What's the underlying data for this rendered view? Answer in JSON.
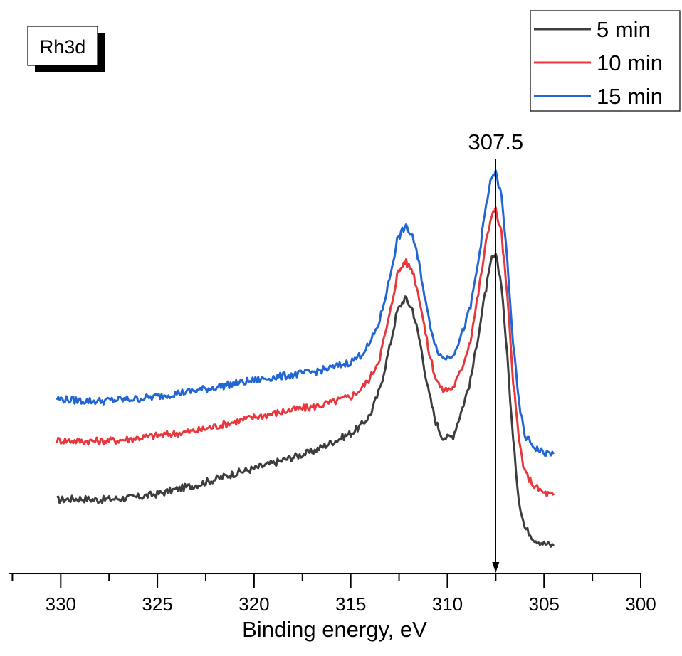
{
  "chart_data": {
    "type": "line",
    "xlabel": "Binding energy, eV",
    "ylabel": "",
    "xlim": [
      332.7,
      300
    ],
    "x_reversed": true,
    "y_ticks_shown": false,
    "grid": false,
    "legend_position": "top-right",
    "x_ticks": [
      330,
      325,
      320,
      315,
      310,
      305,
      300
    ],
    "x_tick_labels": [
      "330",
      "325",
      "320",
      "315",
      "310",
      "305",
      "300"
    ],
    "badge": "Rh3d",
    "annotation": {
      "label": "307.5",
      "x": 307.5
    },
    "series": [
      {
        "name": "5 min",
        "color": "#3d3d3d",
        "points": [
          [
            330.2,
            0.16
          ],
          [
            329,
            0.163
          ],
          [
            328,
            0.16
          ],
          [
            327,
            0.163
          ],
          [
            326,
            0.166
          ],
          [
            325,
            0.173
          ],
          [
            324,
            0.183
          ],
          [
            323,
            0.193
          ],
          [
            322,
            0.205
          ],
          [
            321,
            0.218
          ],
          [
            320,
            0.228
          ],
          [
            319,
            0.24
          ],
          [
            318,
            0.253
          ],
          [
            317,
            0.265
          ],
          [
            316,
            0.285
          ],
          [
            315,
            0.305
          ],
          [
            314.5,
            0.32
          ],
          [
            314,
            0.345
          ],
          [
            313.5,
            0.4
          ],
          [
            313,
            0.49
          ],
          [
            312.6,
            0.57
          ],
          [
            312.2,
            0.6
          ],
          [
            311.8,
            0.575
          ],
          [
            311.4,
            0.5
          ],
          [
            311,
            0.4
          ],
          [
            310.6,
            0.33
          ],
          [
            310.3,
            0.3
          ],
          [
            310,
            0.295
          ],
          [
            309.7,
            0.3
          ],
          [
            309.3,
            0.35
          ],
          [
            308.8,
            0.42
          ],
          [
            308.4,
            0.52
          ],
          [
            308,
            0.62
          ],
          [
            307.7,
            0.685
          ],
          [
            307.5,
            0.69
          ],
          [
            307.2,
            0.63
          ],
          [
            306.9,
            0.47
          ],
          [
            306.6,
            0.29
          ],
          [
            306.3,
            0.16
          ],
          [
            306,
            0.1
          ],
          [
            305.5,
            0.075
          ],
          [
            305,
            0.065
          ],
          [
            304.5,
            0.06
          ]
        ]
      },
      {
        "name": "10 min",
        "color": "#e8383d",
        "points": [
          [
            330.2,
            0.29
          ],
          [
            329,
            0.288
          ],
          [
            328,
            0.288
          ],
          [
            327,
            0.29
          ],
          [
            326,
            0.295
          ],
          [
            325,
            0.3
          ],
          [
            324,
            0.305
          ],
          [
            323,
            0.31
          ],
          [
            322,
            0.32
          ],
          [
            321,
            0.33
          ],
          [
            320,
            0.34
          ],
          [
            319,
            0.348
          ],
          [
            318,
            0.356
          ],
          [
            317,
            0.362
          ],
          [
            316,
            0.372
          ],
          [
            315,
            0.385
          ],
          [
            314.5,
            0.4
          ],
          [
            314,
            0.425
          ],
          [
            313.5,
            0.47
          ],
          [
            313,
            0.56
          ],
          [
            312.6,
            0.65
          ],
          [
            312.2,
            0.68
          ],
          [
            311.8,
            0.66
          ],
          [
            311.4,
            0.59
          ],
          [
            311,
            0.49
          ],
          [
            310.6,
            0.425
          ],
          [
            310.3,
            0.4
          ],
          [
            310,
            0.4
          ],
          [
            309.7,
            0.405
          ],
          [
            309.3,
            0.44
          ],
          [
            308.8,
            0.51
          ],
          [
            308.4,
            0.61
          ],
          [
            308,
            0.72
          ],
          [
            307.7,
            0.785
          ],
          [
            307.5,
            0.79
          ],
          [
            307.2,
            0.74
          ],
          [
            306.9,
            0.6
          ],
          [
            306.6,
            0.42
          ],
          [
            306.3,
            0.29
          ],
          [
            306,
            0.22
          ],
          [
            305.5,
            0.19
          ],
          [
            305,
            0.175
          ],
          [
            304.5,
            0.17
          ]
        ]
      },
      {
        "name": "15 min",
        "color": "#2166d3",
        "points": [
          [
            330.2,
            0.38
          ],
          [
            329,
            0.376
          ],
          [
            328,
            0.375
          ],
          [
            327,
            0.378
          ],
          [
            326,
            0.38
          ],
          [
            325,
            0.385
          ],
          [
            324,
            0.392
          ],
          [
            323,
            0.398
          ],
          [
            322,
            0.405
          ],
          [
            321,
            0.413
          ],
          [
            320,
            0.42
          ],
          [
            319,
            0.427
          ],
          [
            318,
            0.432
          ],
          [
            317,
            0.438
          ],
          [
            316,
            0.447
          ],
          [
            315,
            0.46
          ],
          [
            314.5,
            0.475
          ],
          [
            314,
            0.5
          ],
          [
            313.5,
            0.55
          ],
          [
            313,
            0.64
          ],
          [
            312.6,
            0.725
          ],
          [
            312.2,
            0.755
          ],
          [
            311.8,
            0.735
          ],
          [
            311.4,
            0.66
          ],
          [
            311,
            0.56
          ],
          [
            310.6,
            0.495
          ],
          [
            310.3,
            0.47
          ],
          [
            310,
            0.47
          ],
          [
            309.7,
            0.478
          ],
          [
            309.3,
            0.515
          ],
          [
            308.8,
            0.58
          ],
          [
            308.4,
            0.68
          ],
          [
            308,
            0.8
          ],
          [
            307.7,
            0.865
          ],
          [
            307.5,
            0.87
          ],
          [
            307.2,
            0.82
          ],
          [
            306.9,
            0.68
          ],
          [
            306.6,
            0.5
          ],
          [
            306.3,
            0.37
          ],
          [
            306,
            0.3
          ],
          [
            305.5,
            0.275
          ],
          [
            305,
            0.262
          ],
          [
            304.5,
            0.26
          ]
        ]
      }
    ]
  }
}
